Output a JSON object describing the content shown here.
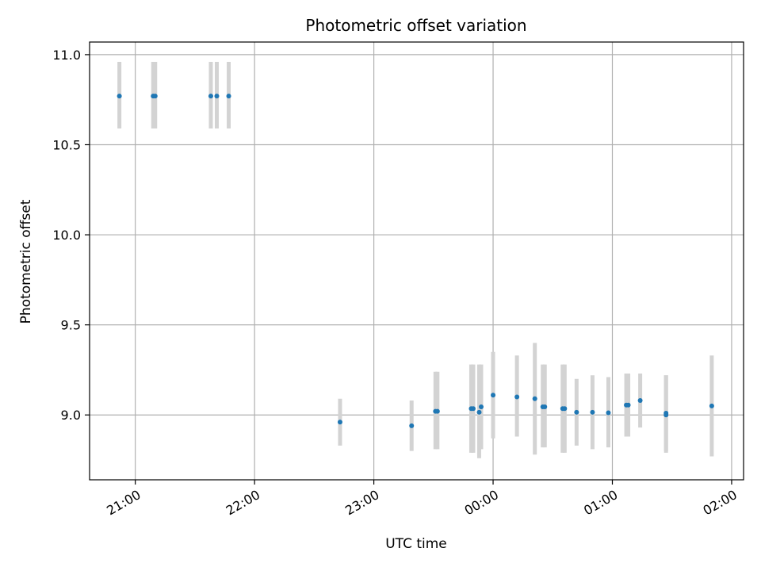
{
  "chart_data": {
    "type": "scatter",
    "title": "Photometric offset variation",
    "xlabel": "UTC time",
    "ylabel": "Photometric offset",
    "xlim": [
      "20:37",
      "26:06"
    ],
    "ylim": [
      8.64,
      11.07
    ],
    "x_ticks": [
      "21:00",
      "22:00",
      "23:00",
      "00:00",
      "01:00",
      "02:00"
    ],
    "y_ticks": [
      "9.0",
      "9.5",
      "10.0",
      "10.5",
      "11.0"
    ],
    "grid": true,
    "colors": {
      "points": "#1f77b4",
      "error_bars": "#d3d3d3",
      "grid": "#b0b0b0"
    },
    "points": [
      {
        "x": "20:52",
        "y": 10.77,
        "low": 10.59,
        "high": 10.96
      },
      {
        "x": "21:09",
        "y": 10.77,
        "low": 10.59,
        "high": 10.96
      },
      {
        "x": "21:10",
        "y": 10.77,
        "low": 10.59,
        "high": 10.96
      },
      {
        "x": "21:38",
        "y": 10.77,
        "low": 10.59,
        "high": 10.96
      },
      {
        "x": "21:41",
        "y": 10.77,
        "low": 10.59,
        "high": 10.96
      },
      {
        "x": "21:47",
        "y": 10.77,
        "low": 10.59,
        "high": 10.96
      },
      {
        "x": "22:43",
        "y": 8.96,
        "low": 8.83,
        "high": 9.09
      },
      {
        "x": "23:19",
        "y": 8.94,
        "low": 8.8,
        "high": 9.08
      },
      {
        "x": "23:31",
        "y": 9.02,
        "low": 8.81,
        "high": 9.24
      },
      {
        "x": "23:32",
        "y": 9.02,
        "low": 8.81,
        "high": 9.24
      },
      {
        "x": "23:49",
        "y": 9.035,
        "low": 8.79,
        "high": 9.28
      },
      {
        "x": "23:50",
        "y": 9.035,
        "low": 8.79,
        "high": 9.28
      },
      {
        "x": "23:53",
        "y": 9.015,
        "low": 8.76,
        "high": 9.28
      },
      {
        "x": "23:54",
        "y": 9.045,
        "low": 8.81,
        "high": 9.28
      },
      {
        "x": "24:00",
        "y": 9.11,
        "low": 8.87,
        "high": 9.35
      },
      {
        "x": "24:12",
        "y": 9.1,
        "low": 8.88,
        "high": 9.33
      },
      {
        "x": "24:21",
        "y": 9.09,
        "low": 8.78,
        "high": 9.4
      },
      {
        "x": "24:25",
        "y": 9.045,
        "low": 8.82,
        "high": 9.28
      },
      {
        "x": "24:26",
        "y": 9.045,
        "low": 8.82,
        "high": 9.28
      },
      {
        "x": "24:35",
        "y": 9.035,
        "low": 8.79,
        "high": 9.28
      },
      {
        "x": "24:36",
        "y": 9.035,
        "low": 8.79,
        "high": 9.28
      },
      {
        "x": "24:42",
        "y": 9.015,
        "low": 8.83,
        "high": 9.2
      },
      {
        "x": "24:50",
        "y": 9.015,
        "low": 8.81,
        "high": 9.22
      },
      {
        "x": "24:58",
        "y": 9.012,
        "low": 8.82,
        "high": 9.21
      },
      {
        "x": "25:07",
        "y": 9.055,
        "low": 8.88,
        "high": 9.23
      },
      {
        "x": "25:08",
        "y": 9.055,
        "low": 8.88,
        "high": 9.23
      },
      {
        "x": "25:14",
        "y": 9.08,
        "low": 8.93,
        "high": 9.23
      },
      {
        "x": "25:27",
        "y": 9.0,
        "low": 8.79,
        "high": 9.22
      },
      {
        "x": "25:27",
        "y": 9.01,
        "low": 8.8,
        "high": 9.22
      },
      {
        "x": "25:50",
        "y": 9.05,
        "low": 8.77,
        "high": 9.33
      }
    ]
  }
}
